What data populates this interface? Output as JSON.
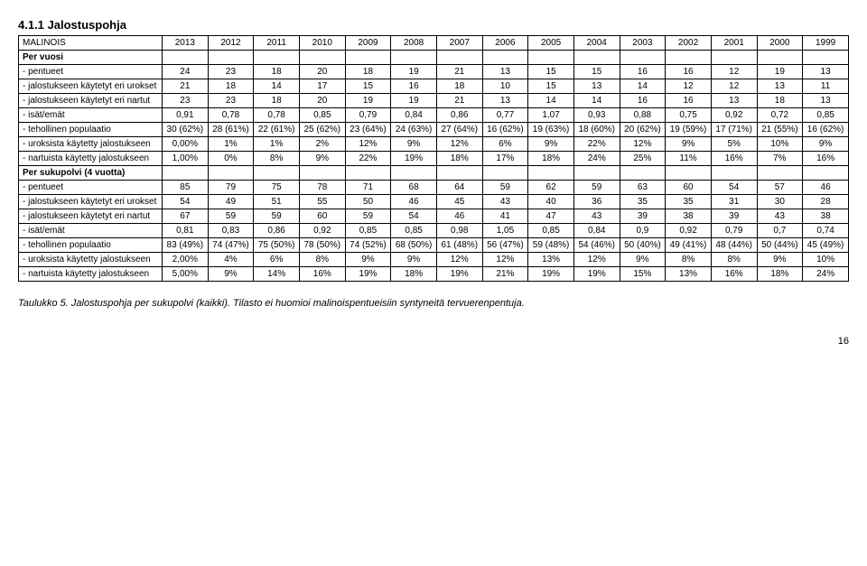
{
  "section_title": "4.1.1 Jalostuspohja",
  "breed_label": "MALINOIS",
  "years": [
    "2013",
    "2012",
    "2011",
    "2010",
    "2009",
    "2008",
    "2007",
    "2006",
    "2005",
    "2004",
    "2003",
    "2002",
    "2001",
    "2000",
    "1999"
  ],
  "per_vuosi_label": "Per vuosi",
  "rows1": [
    {
      "label": "- pentueet",
      "v": [
        "24",
        "23",
        "18",
        "20",
        "18",
        "19",
        "21",
        "13",
        "15",
        "15",
        "16",
        "16",
        "12",
        "19",
        "13"
      ]
    },
    {
      "label": "- jalostukseen käytetyt eri urokset",
      "v": [
        "21",
        "18",
        "14",
        "17",
        "15",
        "16",
        "18",
        "10",
        "15",
        "13",
        "14",
        "12",
        "12",
        "13",
        "11"
      ]
    },
    {
      "label": "- jalostukseen käytetyt eri nartut",
      "v": [
        "23",
        "23",
        "18",
        "20",
        "19",
        "19",
        "21",
        "13",
        "14",
        "14",
        "16",
        "16",
        "13",
        "18",
        "13"
      ]
    },
    {
      "label": "- isät/emät",
      "v": [
        "0,91",
        "0,78",
        "0,78",
        "0,85",
        "0,79",
        "0,84",
        "0,86",
        "0,77",
        "1,07",
        "0,93",
        "0,88",
        "0,75",
        "0,92",
        "0,72",
        "0,85"
      ]
    },
    {
      "label": "- tehollinen populaatio",
      "v": [
        "30 (62%)",
        "28 (61%)",
        "22 (61%)",
        "25 (62%)",
        "23 (64%)",
        "24 (63%)",
        "27 (64%)",
        "16 (62%)",
        "19 (63%)",
        "18 (60%)",
        "20 (62%)",
        "19 (59%)",
        "17 (71%)",
        "21 (55%)",
        "16 (62%)"
      ]
    },
    {
      "label": "- uroksista käytetty jalostukseen",
      "v": [
        "0,00%",
        "1%",
        "1%",
        "2%",
        "12%",
        "9%",
        "12%",
        "6%",
        "9%",
        "22%",
        "12%",
        "9%",
        "5%",
        "10%",
        "9%"
      ]
    },
    {
      "label": "- nartuista käytetty jalostukseen",
      "v": [
        "1,00%",
        "0%",
        "8%",
        "9%",
        "22%",
        "19%",
        "18%",
        "17%",
        "18%",
        "24%",
        "25%",
        "11%",
        "16%",
        "7%",
        "16%"
      ]
    }
  ],
  "per_sukupolvi_label": "Per sukupolvi (4 vuotta)",
  "rows2": [
    {
      "label": "- pentueet",
      "v": [
        "85",
        "79",
        "75",
        "78",
        "71",
        "68",
        "64",
        "59",
        "62",
        "59",
        "63",
        "60",
        "54",
        "57",
        "46"
      ]
    },
    {
      "label": "- jalostukseen käytetyt eri urokset",
      "v": [
        "54",
        "49",
        "51",
        "55",
        "50",
        "46",
        "45",
        "43",
        "40",
        "36",
        "35",
        "35",
        "31",
        "30",
        "28"
      ]
    },
    {
      "label": "- jalostukseen käytetyt eri nartut",
      "v": [
        "67",
        "59",
        "59",
        "60",
        "59",
        "54",
        "46",
        "41",
        "47",
        "43",
        "39",
        "38",
        "39",
        "43",
        "38"
      ]
    },
    {
      "label": "- isät/emät",
      "v": [
        "0,81",
        "0,83",
        "0,86",
        "0,92",
        "0,85",
        "0,85",
        "0,98",
        "1,05",
        "0,85",
        "0,84",
        "0,9",
        "0,92",
        "0,79",
        "0,7",
        "0,74"
      ]
    },
    {
      "label": "- tehollinen populaatio",
      "v": [
        "83 (49%)",
        "74 (47%)",
        "75 (50%)",
        "78 (50%)",
        "74 (52%)",
        "68 (50%)",
        "61 (48%)",
        "56 (47%)",
        "59 (48%)",
        "54 (46%)",
        "50 (40%)",
        "49 (41%)",
        "48 (44%)",
        "50 (44%)",
        "45 (49%)"
      ]
    },
    {
      "label": "- uroksista käytetty jalostukseen",
      "v": [
        "2,00%",
        "4%",
        "6%",
        "8%",
        "9%",
        "9%",
        "12%",
        "12%",
        "13%",
        "12%",
        "9%",
        "8%",
        "8%",
        "9%",
        "10%"
      ]
    },
    {
      "label": "- nartuista käytetty jalostukseen",
      "v": [
        "5,00%",
        "9%",
        "14%",
        "16%",
        "19%",
        "18%",
        "19%",
        "21%",
        "19%",
        "19%",
        "15%",
        "13%",
        "16%",
        "18%",
        "24%"
      ]
    }
  ],
  "caption": "Taulukko 5. Jalostuspohja per sukupolvi (kaikki). Tilasto ei huomioi malinoispentueisiin syntyneitä tervuerenpentuja.",
  "page_number": "16"
}
